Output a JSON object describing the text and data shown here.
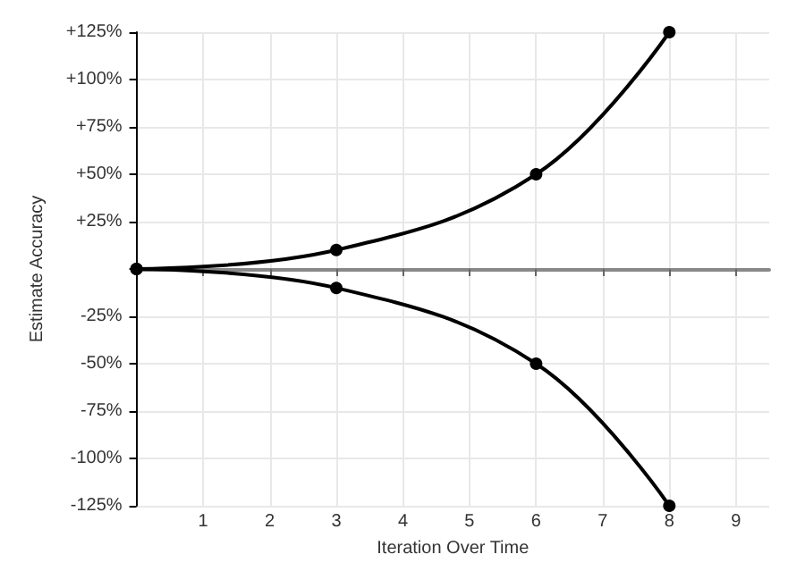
{
  "chart_data": {
    "type": "line",
    "xlabel": "Iteration Over Time",
    "ylabel": "Estimate Accuracy",
    "xlim": [
      0,
      9.5
    ],
    "xticks": [
      1,
      2,
      3,
      4,
      5,
      6,
      7,
      8,
      9
    ],
    "ylim": [
      -125,
      125
    ],
    "yticks": [
      {
        "value": -125,
        "label": "-125%"
      },
      {
        "value": -100,
        "label": "-100%"
      },
      {
        "value": -75,
        "label": "-75%"
      },
      {
        "value": -50,
        "label": "-50%"
      },
      {
        "value": -25,
        "label": "-25%"
      },
      {
        "value": 0,
        "label": null
      },
      {
        "value": 25,
        "label": "+25%"
      },
      {
        "value": 50,
        "label": "+50%"
      },
      {
        "value": 75,
        "label": "+75%"
      },
      {
        "value": 100,
        "label": "+100%"
      },
      {
        "value": 125,
        "label": "+125%"
      }
    ],
    "series": [
      {
        "color": "#000000",
        "x": [
          0,
          3,
          6,
          8
        ],
        "values": [
          0,
          10,
          50,
          125
        ]
      },
      {
        "color": "#000000",
        "x": [
          0,
          3,
          6,
          8
        ],
        "values": [
          0,
          -10,
          -50,
          -125
        ]
      }
    ],
    "grid": true,
    "marker": "circle",
    "line_style": "solid"
  }
}
